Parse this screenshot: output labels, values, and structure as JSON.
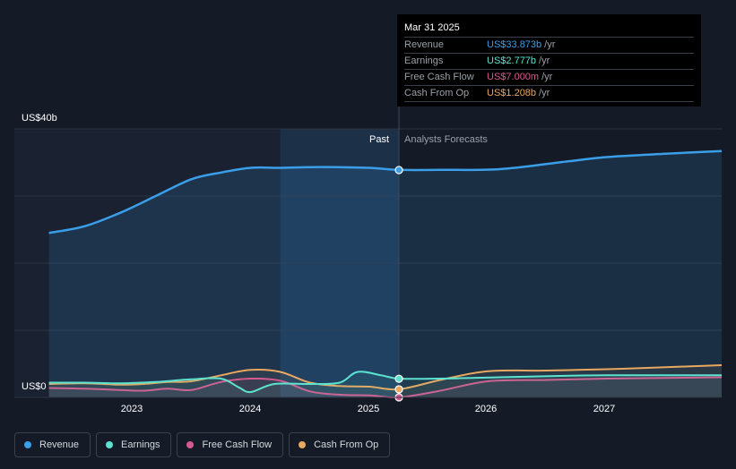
{
  "tooltip": {
    "date": "Mar 31 2025",
    "rows": [
      {
        "label": "Revenue",
        "value": "US$33.873b",
        "unit": "/yr",
        "color": "#3b9ee8"
      },
      {
        "label": "Earnings",
        "value": "US$2.777b",
        "unit": "/yr",
        "color": "#5de2cf"
      },
      {
        "label": "Free Cash Flow",
        "value": "US$7.000m",
        "unit": "/yr",
        "color": "#d45a8f"
      },
      {
        "label": "Cash From Op",
        "value": "US$1.208b",
        "unit": "/yr",
        "color": "#e8a860"
      }
    ]
  },
  "legend": [
    {
      "label": "Revenue",
      "color": "#3b9ee8"
    },
    {
      "label": "Earnings",
      "color": "#5de2cf"
    },
    {
      "label": "Free Cash Flow",
      "color": "#d45a8f"
    },
    {
      "label": "Cash From Op",
      "color": "#e8a860"
    }
  ],
  "chart_data": {
    "type": "line",
    "y_top_label": "US$40b",
    "y_bottom_label": "US$0",
    "past_label": "Past",
    "forecast_label": "Analysts Forecasts",
    "x_ticks": [
      "2023",
      "2024",
      "2025",
      "2026",
      "2027"
    ],
    "ylim": [
      0,
      40
    ],
    "xlim": [
      2022.25,
      2027.97
    ],
    "divider_x": 2025.25,
    "past_shade_start": 2024.25,
    "grid": true,
    "series": [
      {
        "name": "Revenue",
        "color": "#3b9ee8",
        "x": [
          2022.3,
          2022.6,
          2022.9,
          2023.2,
          2023.5,
          2023.75,
          2024.0,
          2024.25,
          2024.5,
          2024.75,
          2025.0,
          2025.25,
          2025.6,
          2026.1,
          2026.6,
          2027.0,
          2027.5,
          2027.97
        ],
        "y": [
          24.5,
          25.5,
          27.5,
          30.0,
          32.5,
          33.5,
          34.2,
          34.2,
          34.3,
          34.3,
          34.2,
          33.9,
          33.9,
          34.0,
          35.0,
          35.8,
          36.3,
          36.7
        ]
      },
      {
        "name": "Earnings",
        "color": "#5de2cf",
        "x": [
          2022.3,
          2022.6,
          2022.9,
          2023.2,
          2023.5,
          2023.75,
          2023.9,
          2024.0,
          2024.2,
          2024.5,
          2024.75,
          2024.9,
          2025.1,
          2025.25,
          2025.6,
          2026.1,
          2026.6,
          2027.0,
          2027.5,
          2027.97
        ],
        "y": [
          2.2,
          2.2,
          2.1,
          2.3,
          2.7,
          2.8,
          1.5,
          0.8,
          2.0,
          2.0,
          2.2,
          3.8,
          3.3,
          2.8,
          2.8,
          3.0,
          3.2,
          3.3,
          3.3,
          3.3
        ]
      },
      {
        "name": "Free Cash Flow",
        "color": "#d45a8f",
        "x": [
          2022.3,
          2022.6,
          2022.9,
          2023.1,
          2023.3,
          2023.5,
          2023.75,
          2024.0,
          2024.25,
          2024.5,
          2024.75,
          2025.0,
          2025.25,
          2025.6,
          2026.0,
          2026.5,
          2027.0,
          2027.5,
          2027.97
        ],
        "y": [
          1.4,
          1.3,
          1.1,
          1.0,
          1.3,
          1.1,
          2.3,
          2.8,
          2.5,
          0.9,
          0.4,
          0.3,
          0.007,
          1.0,
          2.4,
          2.6,
          2.8,
          2.9,
          3.0
        ]
      },
      {
        "name": "Cash From Op",
        "color": "#e8a860",
        "x": [
          2022.3,
          2022.6,
          2022.9,
          2023.1,
          2023.3,
          2023.5,
          2023.75,
          2024.0,
          2024.25,
          2024.5,
          2024.75,
          2025.0,
          2025.25,
          2025.6,
          2026.0,
          2026.5,
          2027.0,
          2027.5,
          2027.97
        ],
        "y": [
          2.0,
          2.1,
          1.9,
          2.0,
          2.3,
          2.4,
          3.3,
          4.1,
          3.8,
          2.2,
          1.7,
          1.6,
          1.208,
          2.6,
          3.9,
          4.0,
          4.2,
          4.5,
          4.8
        ]
      }
    ]
  }
}
